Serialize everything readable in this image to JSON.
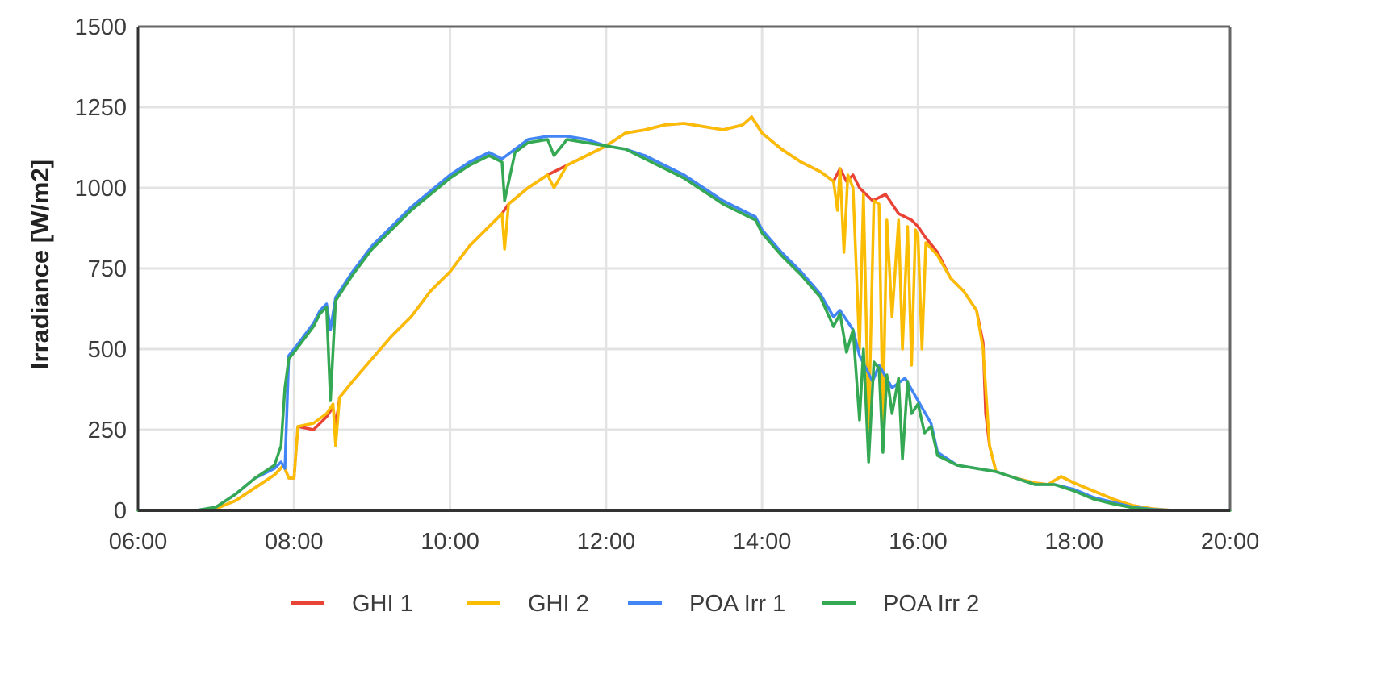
{
  "chart_data": {
    "type": "line",
    "title": "",
    "xlabel": "",
    "ylabel": "Irradiance [W/m2]",
    "x_ticks": [
      "06:00",
      "08:00",
      "10:00",
      "12:00",
      "14:00",
      "16:00",
      "18:00",
      "20:00"
    ],
    "y_ticks": [
      "0",
      "250",
      "500",
      "750",
      "1000",
      "1250",
      "1500"
    ],
    "xlim": [
      "06:00",
      "20:00"
    ],
    "ylim": [
      0,
      1500
    ],
    "grid": true,
    "legend": "bottom",
    "series": [
      {
        "name": "GHI 1",
        "color": "#e94335",
        "points": [
          [
            "06:00",
            0
          ],
          [
            "06:45",
            0
          ],
          [
            "07:00",
            5
          ],
          [
            "07:15",
            30
          ],
          [
            "07:30",
            70
          ],
          [
            "07:45",
            110
          ],
          [
            "07:52",
            140
          ],
          [
            "07:56",
            100
          ],
          [
            "08:00",
            100
          ],
          [
            "08:03",
            260
          ],
          [
            "08:15",
            250
          ],
          [
            "08:25",
            290
          ],
          [
            "08:30",
            320
          ],
          [
            "08:32",
            260
          ],
          [
            "08:35",
            350
          ],
          [
            "08:45",
            400
          ],
          [
            "09:00",
            470
          ],
          [
            "09:15",
            540
          ],
          [
            "09:30",
            600
          ],
          [
            "09:45",
            680
          ],
          [
            "10:00",
            740
          ],
          [
            "10:15",
            820
          ],
          [
            "10:30",
            880
          ],
          [
            "10:40",
            920
          ],
          [
            "10:45",
            950
          ],
          [
            "11:00",
            1000
          ],
          [
            "11:15",
            1040
          ],
          [
            "11:30",
            1070
          ],
          [
            "11:45",
            1100
          ],
          [
            "12:00",
            1130
          ],
          [
            "12:15",
            1170
          ],
          [
            "12:30",
            1180
          ],
          [
            "12:45",
            1195
          ],
          [
            "13:00",
            1200
          ],
          [
            "13:15",
            1190
          ],
          [
            "13:30",
            1180
          ],
          [
            "13:45",
            1195
          ],
          [
            "13:52",
            1220
          ],
          [
            "14:00",
            1170
          ],
          [
            "14:15",
            1120
          ],
          [
            "14:30",
            1080
          ],
          [
            "14:45",
            1050
          ],
          [
            "14:55",
            1020
          ],
          [
            "15:00",
            1060
          ],
          [
            "15:05",
            1020
          ],
          [
            "15:10",
            1040
          ],
          [
            "15:15",
            1000
          ],
          [
            "15:25",
            960
          ],
          [
            "15:35",
            980
          ],
          [
            "15:45",
            920
          ],
          [
            "15:55",
            900
          ],
          [
            "16:00",
            880
          ],
          [
            "16:05",
            850
          ],
          [
            "16:15",
            800
          ],
          [
            "16:25",
            720
          ],
          [
            "16:35",
            680
          ],
          [
            "16:45",
            620
          ],
          [
            "16:50",
            520
          ],
          [
            "16:52",
            300
          ],
          [
            "16:55",
            200
          ],
          [
            "17:00",
            120
          ],
          [
            "17:15",
            100
          ],
          [
            "17:30",
            85
          ],
          [
            "17:40",
            80
          ],
          [
            "17:50",
            105
          ],
          [
            "18:00",
            85
          ],
          [
            "18:15",
            60
          ],
          [
            "18:30",
            35
          ],
          [
            "18:45",
            15
          ],
          [
            "19:00",
            5
          ],
          [
            "19:15",
            0
          ],
          [
            "20:00",
            0
          ]
        ]
      },
      {
        "name": "GHI 2",
        "color": "#fbbc04",
        "points": [
          [
            "06:00",
            0
          ],
          [
            "06:45",
            0
          ],
          [
            "07:00",
            5
          ],
          [
            "07:15",
            30
          ],
          [
            "07:30",
            70
          ],
          [
            "07:45",
            110
          ],
          [
            "07:52",
            140
          ],
          [
            "07:56",
            100
          ],
          [
            "08:00",
            100
          ],
          [
            "08:03",
            260
          ],
          [
            "08:15",
            270
          ],
          [
            "08:25",
            300
          ],
          [
            "08:30",
            330
          ],
          [
            "08:32",
            200
          ],
          [
            "08:35",
            350
          ],
          [
            "08:45",
            400
          ],
          [
            "09:00",
            470
          ],
          [
            "09:15",
            540
          ],
          [
            "09:30",
            600
          ],
          [
            "09:45",
            680
          ],
          [
            "10:00",
            740
          ],
          [
            "10:15",
            820
          ],
          [
            "10:30",
            880
          ],
          [
            "10:40",
            920
          ],
          [
            "10:42",
            810
          ],
          [
            "10:45",
            950
          ],
          [
            "11:00",
            1000
          ],
          [
            "11:15",
            1040
          ],
          [
            "11:20",
            1000
          ],
          [
            "11:30",
            1070
          ],
          [
            "11:45",
            1100
          ],
          [
            "12:00",
            1130
          ],
          [
            "12:15",
            1170
          ],
          [
            "12:30",
            1180
          ],
          [
            "12:45",
            1195
          ],
          [
            "13:00",
            1200
          ],
          [
            "13:15",
            1190
          ],
          [
            "13:30",
            1180
          ],
          [
            "13:45",
            1195
          ],
          [
            "13:52",
            1220
          ],
          [
            "14:00",
            1170
          ],
          [
            "14:15",
            1120
          ],
          [
            "14:30",
            1080
          ],
          [
            "14:45",
            1050
          ],
          [
            "14:55",
            1020
          ],
          [
            "14:58",
            930
          ],
          [
            "15:00",
            1060
          ],
          [
            "15:03",
            800
          ],
          [
            "15:06",
            1040
          ],
          [
            "15:10",
            1000
          ],
          [
            "15:15",
            500
          ],
          [
            "15:18",
            980
          ],
          [
            "15:22",
            250
          ],
          [
            "15:26",
            960
          ],
          [
            "15:30",
            950
          ],
          [
            "15:33",
            280
          ],
          [
            "15:36",
            900
          ],
          [
            "15:40",
            600
          ],
          [
            "15:45",
            900
          ],
          [
            "15:48",
            500
          ],
          [
            "15:52",
            880
          ],
          [
            "15:55",
            450
          ],
          [
            "15:58",
            870
          ],
          [
            "16:00",
            850
          ],
          [
            "16:03",
            500
          ],
          [
            "16:06",
            830
          ],
          [
            "16:15",
            790
          ],
          [
            "16:25",
            720
          ],
          [
            "16:35",
            680
          ],
          [
            "16:45",
            620
          ],
          [
            "16:50",
            500
          ],
          [
            "16:55",
            200
          ],
          [
            "17:00",
            120
          ],
          [
            "17:15",
            100
          ],
          [
            "17:30",
            85
          ],
          [
            "17:40",
            80
          ],
          [
            "17:50",
            105
          ],
          [
            "18:00",
            85
          ],
          [
            "18:15",
            60
          ],
          [
            "18:30",
            35
          ],
          [
            "18:45",
            15
          ],
          [
            "19:00",
            5
          ],
          [
            "19:15",
            0
          ],
          [
            "20:00",
            0
          ]
        ]
      },
      {
        "name": "POA Irr 1",
        "color": "#4285f4",
        "points": [
          [
            "06:00",
            0
          ],
          [
            "06:45",
            0
          ],
          [
            "07:00",
            10
          ],
          [
            "07:15",
            50
          ],
          [
            "07:30",
            100
          ],
          [
            "07:45",
            130
          ],
          [
            "07:50",
            150
          ],
          [
            "07:53",
            130
          ],
          [
            "07:56",
            480
          ],
          [
            "08:00",
            500
          ],
          [
            "08:15",
            580
          ],
          [
            "08:20",
            620
          ],
          [
            "08:25",
            640
          ],
          [
            "08:28",
            560
          ],
          [
            "08:32",
            660
          ],
          [
            "08:45",
            740
          ],
          [
            "09:00",
            820
          ],
          [
            "09:15",
            880
          ],
          [
            "09:30",
            940
          ],
          [
            "09:45",
            990
          ],
          [
            "10:00",
            1040
          ],
          [
            "10:15",
            1080
          ],
          [
            "10:30",
            1110
          ],
          [
            "10:40",
            1090
          ],
          [
            "10:50",
            1120
          ],
          [
            "11:00",
            1150
          ],
          [
            "11:15",
            1160
          ],
          [
            "11:30",
            1160
          ],
          [
            "11:45",
            1150
          ],
          [
            "12:00",
            1130
          ],
          [
            "12:15",
            1120
          ],
          [
            "12:30",
            1100
          ],
          [
            "12:45",
            1070
          ],
          [
            "13:00",
            1040
          ],
          [
            "13:15",
            1000
          ],
          [
            "13:30",
            960
          ],
          [
            "13:45",
            930
          ],
          [
            "13:55",
            910
          ],
          [
            "14:00",
            870
          ],
          [
            "14:15",
            800
          ],
          [
            "14:30",
            740
          ],
          [
            "14:45",
            670
          ],
          [
            "14:55",
            600
          ],
          [
            "15:00",
            620
          ],
          [
            "15:10",
            560
          ],
          [
            "15:15",
            480
          ],
          [
            "15:25",
            400
          ],
          [
            "15:30",
            450
          ],
          [
            "15:40",
            380
          ],
          [
            "15:50",
            410
          ],
          [
            "16:00",
            340
          ],
          [
            "16:10",
            270
          ],
          [
            "16:15",
            180
          ],
          [
            "16:30",
            140
          ],
          [
            "16:45",
            130
          ],
          [
            "17:00",
            120
          ],
          [
            "17:15",
            100
          ],
          [
            "17:30",
            80
          ],
          [
            "17:45",
            80
          ],
          [
            "18:00",
            65
          ],
          [
            "18:15",
            40
          ],
          [
            "18:30",
            25
          ],
          [
            "18:45",
            10
          ],
          [
            "19:00",
            3
          ],
          [
            "19:15",
            0
          ],
          [
            "20:00",
            0
          ]
        ]
      },
      {
        "name": "POA Irr 2",
        "color": "#34a853",
        "points": [
          [
            "06:00",
            0
          ],
          [
            "06:45",
            0
          ],
          [
            "07:00",
            10
          ],
          [
            "07:15",
            50
          ],
          [
            "07:30",
            100
          ],
          [
            "07:45",
            140
          ],
          [
            "07:50",
            200
          ],
          [
            "07:53",
            380
          ],
          [
            "07:56",
            470
          ],
          [
            "08:00",
            490
          ],
          [
            "08:15",
            570
          ],
          [
            "08:20",
            610
          ],
          [
            "08:25",
            630
          ],
          [
            "08:28",
            340
          ],
          [
            "08:32",
            650
          ],
          [
            "08:45",
            730
          ],
          [
            "09:00",
            810
          ],
          [
            "09:15",
            870
          ],
          [
            "09:30",
            930
          ],
          [
            "09:45",
            980
          ],
          [
            "10:00",
            1030
          ],
          [
            "10:15",
            1070
          ],
          [
            "10:30",
            1100
          ],
          [
            "10:40",
            1080
          ],
          [
            "10:42",
            960
          ],
          [
            "10:50",
            1110
          ],
          [
            "11:00",
            1140
          ],
          [
            "11:15",
            1150
          ],
          [
            "11:20",
            1100
          ],
          [
            "11:30",
            1150
          ],
          [
            "11:45",
            1140
          ],
          [
            "12:00",
            1130
          ],
          [
            "12:15",
            1120
          ],
          [
            "12:30",
            1090
          ],
          [
            "12:45",
            1060
          ],
          [
            "13:00",
            1030
          ],
          [
            "13:15",
            990
          ],
          [
            "13:30",
            950
          ],
          [
            "13:45",
            920
          ],
          [
            "13:55",
            900
          ],
          [
            "14:00",
            860
          ],
          [
            "14:15",
            790
          ],
          [
            "14:30",
            730
          ],
          [
            "14:45",
            660
          ],
          [
            "14:55",
            570
          ],
          [
            "15:00",
            610
          ],
          [
            "15:05",
            490
          ],
          [
            "15:10",
            560
          ],
          [
            "15:15",
            280
          ],
          [
            "15:18",
            500
          ],
          [
            "15:22",
            150
          ],
          [
            "15:26",
            460
          ],
          [
            "15:30",
            440
          ],
          [
            "15:33",
            180
          ],
          [
            "15:36",
            420
          ],
          [
            "15:40",
            300
          ],
          [
            "15:45",
            410
          ],
          [
            "15:48",
            160
          ],
          [
            "15:52",
            400
          ],
          [
            "15:55",
            300
          ],
          [
            "16:00",
            330
          ],
          [
            "16:05",
            240
          ],
          [
            "16:10",
            260
          ],
          [
            "16:15",
            170
          ],
          [
            "16:30",
            140
          ],
          [
            "16:45",
            130
          ],
          [
            "17:00",
            120
          ],
          [
            "17:15",
            100
          ],
          [
            "17:30",
            80
          ],
          [
            "17:45",
            80
          ],
          [
            "18:00",
            60
          ],
          [
            "18:15",
            35
          ],
          [
            "18:30",
            20
          ],
          [
            "18:45",
            8
          ],
          [
            "19:00",
            2
          ],
          [
            "19:15",
            0
          ],
          [
            "20:00",
            0
          ]
        ]
      }
    ]
  }
}
